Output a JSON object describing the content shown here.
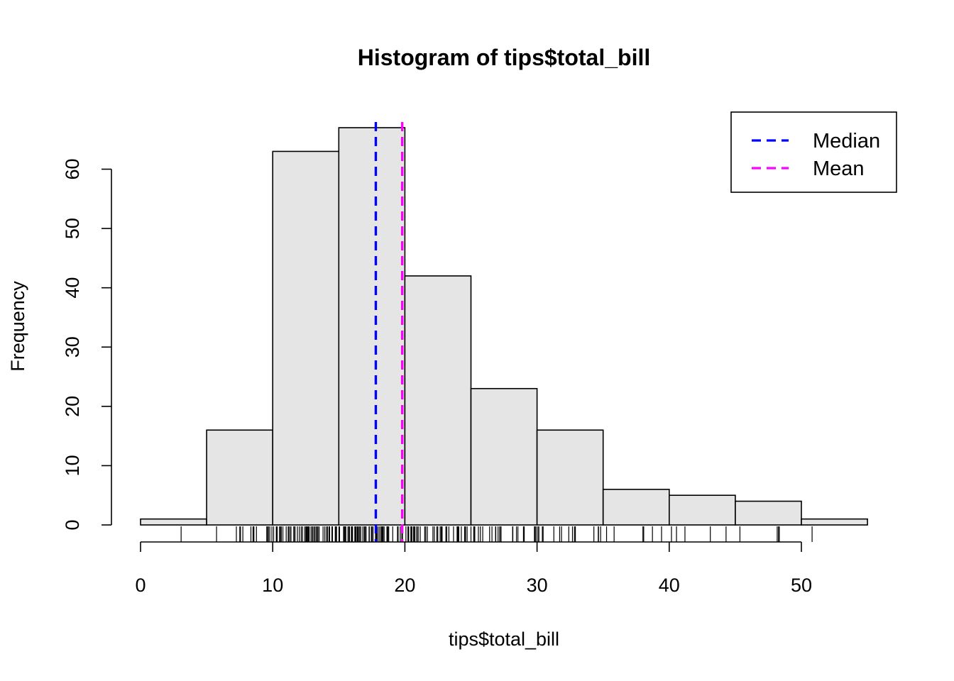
{
  "chart_data": {
    "type": "bar",
    "title": "Histogram of tips$total_bill",
    "xlabel": "tips$total_bill",
    "ylabel": "Frequency",
    "bins": [
      {
        "start": 0,
        "end": 5,
        "count": 1
      },
      {
        "start": 5,
        "end": 10,
        "count": 16
      },
      {
        "start": 10,
        "end": 15,
        "count": 63
      },
      {
        "start": 15,
        "end": 20,
        "count": 67
      },
      {
        "start": 20,
        "end": 25,
        "count": 42
      },
      {
        "start": 25,
        "end": 30,
        "count": 23
      },
      {
        "start": 30,
        "end": 35,
        "count": 16
      },
      {
        "start": 35,
        "end": 40,
        "count": 6
      },
      {
        "start": 40,
        "end": 45,
        "count": 5
      },
      {
        "start": 45,
        "end": 50,
        "count": 4
      },
      {
        "start": 50,
        "end": 55,
        "count": 1
      }
    ],
    "x_ticks": [
      "0",
      "10",
      "20",
      "30",
      "40",
      "50"
    ],
    "y_ticks": [
      "0",
      "10",
      "20",
      "30",
      "40",
      "50",
      "60"
    ],
    "xlim": [
      0,
      55
    ],
    "ylim": [
      0,
      67
    ],
    "grid": false,
    "reference_lines": [
      {
        "name": "Median",
        "x": 17.8,
        "color": "#0000ff",
        "dash": "dashed"
      },
      {
        "name": "Mean",
        "x": 19.8,
        "color": "#ff00ff",
        "dash": "dashed"
      }
    ],
    "legend": {
      "position": "top-right",
      "entries": [
        {
          "label": "Median",
          "color": "#0000ff"
        },
        {
          "label": "Mean",
          "color": "#ff00ff"
        }
      ]
    },
    "rug": [
      3.07,
      5.75,
      7.25,
      7.51,
      7.56,
      7.74,
      8.35,
      8.51,
      8.52,
      8.58,
      8.77,
      9.55,
      9.6,
      9.68,
      9.78,
      9.94,
      10.07,
      10.27,
      10.29,
      10.33,
      10.34,
      10.51,
      10.59,
      10.63,
      10.65,
      10.77,
      11.02,
      11.17,
      11.24,
      11.35,
      11.38,
      11.59,
      11.61,
      11.69,
      11.87,
      12.02,
      12.16,
      12.26,
      12.43,
      12.46,
      12.54,
      12.6,
      12.66,
      12.69,
      12.74,
      12.76,
      12.9,
      13.0,
      13.03,
      13.13,
      13.16,
      13.27,
      13.28,
      13.37,
      13.39,
      13.42,
      13.51,
      13.81,
      13.94,
      14.07,
      14.15,
      14.26,
      14.31,
      14.48,
      14.52,
      14.73,
      14.78,
      14.83,
      15.01,
      15.04,
      15.06,
      15.36,
      15.38,
      15.42,
      15.48,
      15.53,
      15.69,
      15.77,
      15.81,
      15.95,
      15.98,
      16.0,
      16.04,
      16.21,
      16.27,
      16.29,
      16.31,
      16.4,
      16.45,
      16.47,
      16.49,
      16.58,
      16.66,
      16.82,
      16.93,
      16.97,
      16.99,
      17.07,
      17.29,
      17.31,
      17.46,
      17.47,
      17.51,
      17.59,
      17.78,
      17.81,
      17.82,
      17.89,
      17.92,
      18.04,
      18.15,
      18.24,
      18.26,
      18.28,
      18.29,
      18.35,
      18.43,
      18.64,
      18.69,
      18.71,
      18.78,
      19.08,
      19.44,
      19.49,
      19.65,
      19.77,
      19.81,
      19.82,
      20.08,
      20.23,
      20.27,
      20.29,
      20.45,
      20.49,
      20.53,
      20.65,
      20.69,
      20.76,
      20.9,
      20.92,
      21.01,
      21.16,
      21.5,
      21.58,
      21.7,
      22.12,
      22.23,
      22.42,
      22.49,
      22.67,
      22.75,
      22.76,
      22.82,
      23.1,
      23.17,
      23.33,
      23.68,
      23.95,
      24.01,
      24.06,
      24.08,
      24.27,
      24.52,
      24.55,
      24.59,
      24.71,
      25.0,
      25.21,
      25.28,
      25.29,
      25.56,
      25.71,
      25.89,
      26.41,
      26.59,
      26.86,
      26.88,
      27.05,
      27.18,
      27.2,
      27.28,
      28.15,
      28.17,
      28.44,
      28.55,
      28.97,
      29.03,
      29.8,
      29.85,
      29.93,
      30.06,
      30.14,
      30.4,
      30.46,
      31.27,
      31.71,
      31.85,
      32.4,
      32.68,
      32.83,
      32.9,
      34.3,
      34.63,
      34.65,
      34.81,
      35.26,
      35.83,
      38.01,
      38.07,
      38.73,
      39.42,
      40.17,
      40.55,
      41.19,
      43.11,
      44.3,
      45.35,
      48.17,
      48.27,
      48.33,
      50.81
    ]
  }
}
